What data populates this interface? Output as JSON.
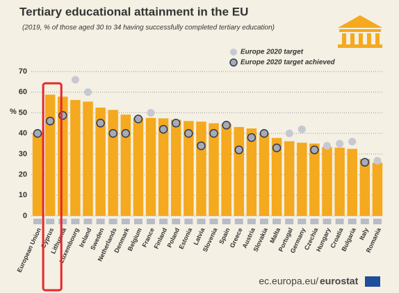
{
  "chart_data": {
    "type": "bar",
    "title": "Tertiary educational attainment in the EU",
    "subtitle": "(2019, % of those aged 30 to 34 having successfully completed tertiary education)",
    "ylabel": "%",
    "categories": [
      "European Union",
      "Cyprus",
      "Lithuania",
      "Luxembourg",
      "Ireland",
      "Sweden",
      "Netherlands",
      "Denmark",
      "Belgium",
      "France",
      "Finland",
      "Poland",
      "Estonia",
      "Latvia",
      "Slovenia",
      "Spain",
      "Greece",
      "Austria",
      "Slovakia",
      "Malta",
      "Portugal",
      "Germany",
      "Czechia",
      "Hungary",
      "Croatia",
      "Bulgaria",
      "Italy",
      "Romania"
    ],
    "series": [
      {
        "color": "#f5a91e",
        "values": [
          40.3,
          58.8,
          57.8,
          56.2,
          55.4,
          52.5,
          51.4,
          49.1,
          47.5,
          47.5,
          47.3,
          46.6,
          46.0,
          45.7,
          44.9,
          44.7,
          43.1,
          42.4,
          40.1,
          37.8,
          36.2,
          35.5,
          35.1,
          33.4,
          33.1,
          32.5,
          27.6,
          25.8
        ]
      },
      {
        "name": "Europe 2020 target",
        "color": "#c8c8d2",
        "values": [
          40,
          46,
          48.7,
          66,
          60,
          45,
          40,
          40,
          47,
          50,
          42,
          45,
          40,
          34,
          40,
          44,
          32,
          38,
          40,
          33,
          40,
          42,
          32,
          34,
          35,
          36,
          26,
          26.7
        ]
      }
    ],
    "achieved_legend": "Europe 2020 target achieved",
    "achieved_color": "#a8aab4",
    "highlight_category": 1,
    "ylim": [
      0,
      70
    ],
    "yticks": [
      0,
      10,
      20,
      30,
      40,
      50,
      60,
      70
    ],
    "grid": true,
    "source": [
      "ec.europa.eu/",
      "eurostat"
    ]
  }
}
